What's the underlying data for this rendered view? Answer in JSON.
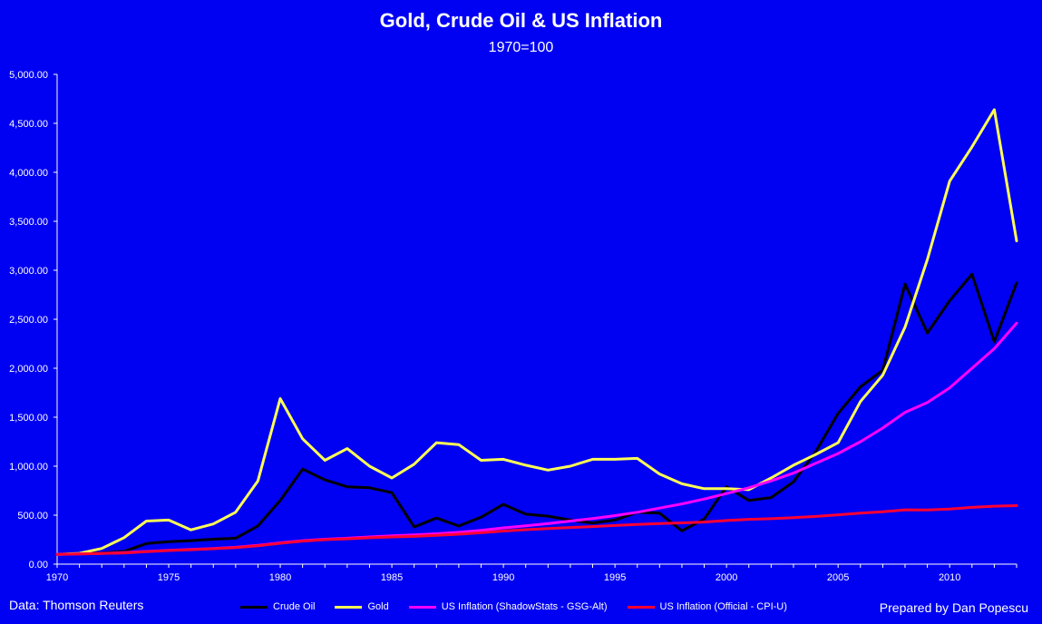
{
  "chart_data": {
    "type": "line",
    "title": "Gold, Crude Oil & US Inflation",
    "subtitle": "1970=100",
    "xlim": [
      1970,
      2013
    ],
    "ylim": [
      0,
      5000
    ],
    "x_ticks": [
      "1970",
      "1975",
      "1980",
      "1985",
      "1990",
      "1995",
      "2000",
      "2005",
      "2010"
    ],
    "y_ticks": [
      "0.00",
      "500.00",
      "1,000.00",
      "1,500.00",
      "2,000.00",
      "2,500.00",
      "3,000.00",
      "3,500.00",
      "4,000.00",
      "4,500.00",
      "5,000.00"
    ],
    "x": [
      1970,
      1971,
      1972,
      1973,
      1974,
      1975,
      1976,
      1977,
      1978,
      1979,
      1980,
      1981,
      1982,
      1983,
      1984,
      1985,
      1986,
      1987,
      1988,
      1989,
      1990,
      1991,
      1992,
      1993,
      1994,
      1995,
      1996,
      1997,
      1998,
      1999,
      2000,
      2001,
      2002,
      2003,
      2004,
      2005,
      2006,
      2007,
      2008,
      2009,
      2010,
      2011,
      2012,
      2013
    ],
    "series": [
      {
        "name": "Crude Oil",
        "color": "#000000",
        "values": [
          100,
          110,
          115,
          130,
          210,
          230,
          240,
          255,
          265,
          390,
          650,
          970,
          860,
          790,
          780,
          730,
          380,
          470,
          390,
          480,
          610,
          510,
          490,
          450,
          420,
          450,
          530,
          520,
          340,
          460,
          790,
          650,
          680,
          840,
          1150,
          1540,
          1810,
          1980,
          2860,
          2360,
          2690,
          2960,
          2270,
          2870
        ]
      },
      {
        "name": "Gold",
        "color": "#ffff55",
        "values": [
          100,
          110,
          160,
          270,
          440,
          450,
          350,
          410,
          530,
          850,
          1690,
          1280,
          1060,
          1180,
          1000,
          880,
          1020,
          1240,
          1220,
          1060,
          1070,
          1010,
          960,
          1000,
          1070,
          1070,
          1080,
          920,
          820,
          770,
          770,
          760,
          880,
          1010,
          1120,
          1240,
          1660,
          1930,
          2420,
          3110,
          3910,
          4260,
          4640,
          3300
        ]
      },
      {
        "name": "US Inflation (ShadowStats - GSG-Alt)",
        "color": "#ff00ff",
        "values": [
          100,
          105,
          110,
          118,
          130,
          142,
          150,
          160,
          172,
          192,
          218,
          240,
          255,
          265,
          278,
          290,
          298,
          310,
          325,
          345,
          370,
          392,
          415,
          440,
          466,
          495,
          530,
          572,
          615,
          665,
          720,
          780,
          850,
          930,
          1030,
          1130,
          1250,
          1390,
          1550,
          1650,
          1800,
          2000,
          2200,
          2460
        ]
      },
      {
        "name": "US Inflation (Official - CPI-U)",
        "color": "#ff0033",
        "values": [
          100,
          104,
          108,
          114,
          127,
          139,
          147,
          157,
          169,
          188,
          213,
          235,
          250,
          258,
          269,
          278,
          283,
          294,
          306,
          320,
          338,
          352,
          363,
          374,
          383,
          394,
          405,
          415,
          421,
          430,
          445,
          457,
          464,
          475,
          487,
          504,
          520,
          535,
          555,
          553,
          562,
          580,
          592,
          597
        ]
      }
    ],
    "source": "Data: Thomson Reuters",
    "credit": "Prepared by Dan Popescu"
  }
}
